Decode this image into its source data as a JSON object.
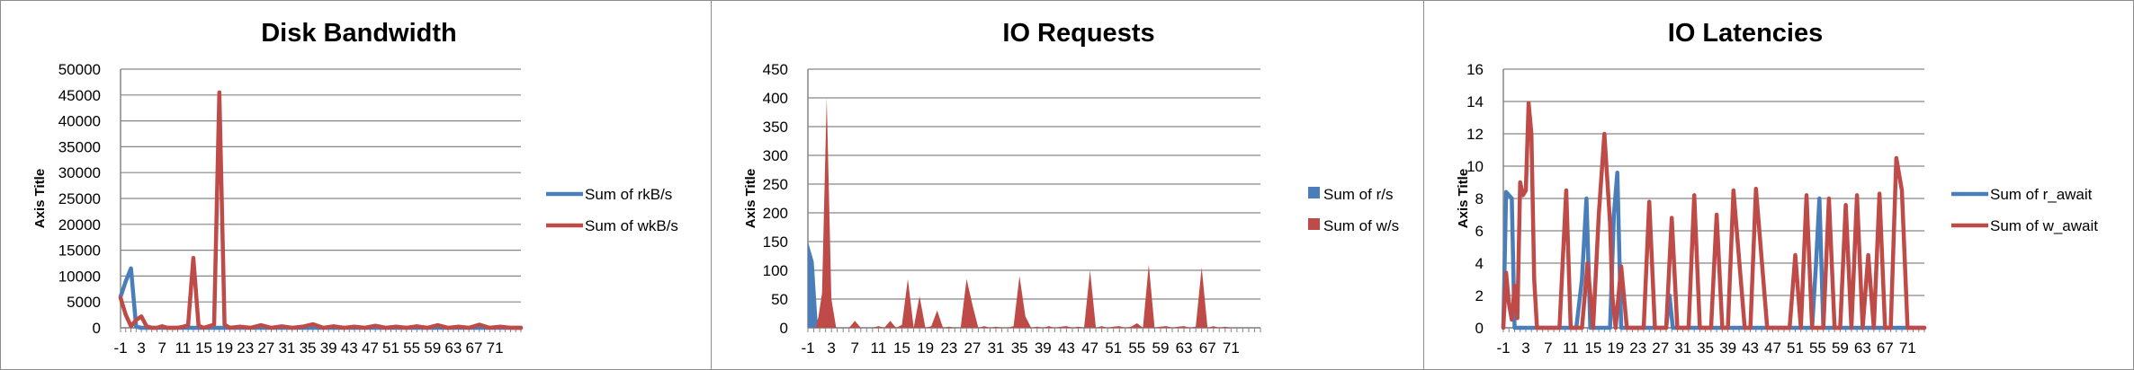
{
  "colors": {
    "blue": "#4a7ebb",
    "red": "#be4b48",
    "grid": "#868686"
  },
  "chart_data": [
    {
      "type": "line",
      "title": "Disk Bandwidth",
      "ylabel": "Axis Title",
      "ylim": [
        0,
        50000
      ],
      "yticks": [
        0,
        5000,
        10000,
        15000,
        20000,
        25000,
        30000,
        35000,
        40000,
        45000,
        50000
      ],
      "xlim": [
        -1,
        76
      ],
      "xticks": [
        -1,
        3,
        7,
        11,
        15,
        19,
        23,
        27,
        31,
        35,
        39,
        43,
        47,
        51,
        55,
        59,
        63,
        67,
        71
      ],
      "legend_position": "right",
      "series": [
        {
          "name": "Sum of rkB/s",
          "color": "#4a7ebb",
          "style": "line",
          "x": [
            -1,
            0,
            1,
            2,
            3,
            76
          ],
          "y": [
            6000,
            9000,
            11500,
            200,
            0,
            0
          ]
        },
        {
          "name": "Sum of wkB/s",
          "color": "#be4b48",
          "style": "line",
          "x": [
            -1,
            0,
            1,
            2,
            3,
            4,
            5,
            6,
            7,
            8,
            9,
            10,
            11,
            12,
            13,
            14,
            15,
            16,
            17,
            18,
            19,
            20,
            22,
            24,
            26,
            28,
            30,
            32,
            34,
            36,
            38,
            40,
            42,
            44,
            46,
            48,
            50,
            52,
            54,
            56,
            58,
            60,
            62,
            64,
            66,
            68,
            70,
            72,
            74,
            76
          ],
          "y": [
            5800,
            2500,
            300,
            1500,
            2200,
            300,
            0,
            0,
            300,
            0,
            0,
            0,
            200,
            500,
            13500,
            400,
            0,
            300,
            600,
            45500,
            600,
            0,
            200,
            0,
            500,
            0,
            300,
            0,
            200,
            700,
            0,
            300,
            0,
            200,
            0,
            400,
            0,
            200,
            0,
            300,
            0,
            500,
            0,
            200,
            0,
            600,
            0,
            200,
            0,
            0
          ]
        }
      ]
    },
    {
      "type": "area",
      "title": "IO Requests",
      "ylabel": "Axis Title",
      "ylim": [
        0,
        450
      ],
      "yticks": [
        0,
        50,
        100,
        150,
        200,
        250,
        300,
        350,
        400,
        450
      ],
      "xlim": [
        -1,
        76
      ],
      "xticks": [
        -1,
        3,
        7,
        11,
        15,
        19,
        23,
        27,
        31,
        35,
        39,
        43,
        47,
        51,
        55,
        59,
        63,
        67,
        71
      ],
      "legend_position": "right",
      "series": [
        {
          "name": "Sum of r/s",
          "color": "#4a7ebb",
          "style": "area",
          "x": [
            -1,
            0,
            0.6,
            1.2,
            76
          ],
          "y": [
            150,
            115,
            15,
            0,
            0
          ]
        },
        {
          "name": "Sum of w/s",
          "color": "#be4b48",
          "style": "area",
          "x": [
            -1,
            0.3,
            0.8,
            1.4,
            2.2,
            3,
            3.8,
            5,
            6,
            7,
            8,
            9,
            10,
            11,
            12,
            13,
            14,
            15,
            16,
            17,
            18,
            19,
            20,
            21,
            22,
            23,
            24,
            25,
            26,
            27,
            28,
            29,
            30,
            31,
            32,
            33,
            34,
            35,
            36,
            37,
            38,
            39,
            40,
            41,
            42,
            43,
            44,
            45,
            46,
            47,
            48,
            49,
            50,
            51,
            52,
            53,
            54,
            55,
            56,
            57,
            58,
            59,
            60,
            61,
            62,
            63,
            64,
            65,
            66,
            67,
            68,
            69,
            70,
            71,
            76
          ],
          "y": [
            0,
            0,
            20,
            60,
            400,
            50,
            0,
            0,
            0,
            12,
            0,
            0,
            0,
            3,
            0,
            12,
            0,
            5,
            85,
            0,
            55,
            0,
            3,
            30,
            0,
            2,
            0,
            0,
            85,
            40,
            0,
            3,
            0,
            2,
            0,
            0,
            3,
            90,
            20,
            0,
            2,
            0,
            3,
            0,
            2,
            3,
            0,
            2,
            0,
            100,
            0,
            3,
            0,
            2,
            3,
            0,
            2,
            8,
            0,
            110,
            0,
            2,
            3,
            0,
            2,
            3,
            0,
            2,
            105,
            0,
            3,
            0,
            2,
            0,
            0
          ]
        }
      ]
    },
    {
      "type": "line",
      "title": "IO Latencies",
      "ylabel": "Axis Title",
      "ylim": [
        0,
        16
      ],
      "yticks": [
        0,
        2,
        4,
        6,
        8,
        10,
        12,
        14,
        16
      ],
      "xlim": [
        -1,
        74
      ],
      "xticks": [
        -1,
        3,
        7,
        11,
        15,
        19,
        23,
        27,
        31,
        35,
        39,
        43,
        47,
        51,
        55,
        59,
        63,
        67,
        71
      ],
      "legend_position": "right",
      "series": [
        {
          "name": "Sum of r_await",
          "color": "#4a7ebb",
          "style": "line",
          "x": [
            -1,
            -0.5,
            0.5,
            1,
            12,
            13,
            13.8,
            14.5,
            18,
            18.7,
            19.3,
            20,
            28,
            28.6,
            29.2,
            54,
            54.7,
            55.3,
            56,
            74
          ],
          "y": [
            0,
            8.4,
            8,
            0,
            0,
            3,
            8,
            0,
            0,
            7,
            9.6,
            0,
            0,
            2,
            0,
            0,
            4,
            8,
            0,
            0
          ]
        },
        {
          "name": "Sum of w_await",
          "color": "#be4b48",
          "style": "line",
          "x": [
            -1,
            -0.5,
            0,
            0.5,
            1,
            1.5,
            2,
            2.5,
            3,
            3.5,
            4,
            4.5,
            5,
            5.5,
            6,
            7,
            9,
            10.2,
            11,
            12,
            13,
            14,
            15,
            16,
            17,
            18,
            18.4,
            19,
            20,
            21,
            22,
            24,
            25,
            26,
            28,
            29,
            30,
            32,
            33,
            34,
            36,
            37,
            38,
            39,
            40,
            42,
            43,
            44,
            46,
            47,
            48,
            50,
            51,
            52,
            53,
            54,
            55,
            56,
            57,
            58,
            59,
            60,
            61,
            62,
            63,
            64,
            65,
            66,
            67,
            68,
            69,
            70,
            71,
            72,
            73,
            74
          ],
          "y": [
            0,
            3.4,
            1.5,
            0.5,
            2.6,
            0.6,
            9,
            8.2,
            8.5,
            13.9,
            12,
            3,
            0,
            0,
            0,
            0,
            0,
            8.5,
            0,
            0,
            0,
            4,
            0,
            7,
            12,
            6.5,
            2,
            0,
            3.8,
            0,
            0,
            0,
            7.8,
            0,
            0,
            6.8,
            0,
            0,
            8.2,
            0,
            0,
            7,
            0,
            0,
            8.5,
            0,
            0,
            8.6,
            0,
            0,
            0,
            0,
            4.5,
            0,
            8.2,
            0,
            0,
            0,
            8,
            0,
            0,
            7.6,
            0,
            8.2,
            0,
            4.5,
            0,
            8.3,
            0,
            0,
            10.5,
            8.5,
            0,
            0,
            0,
            0
          ]
        }
      ]
    }
  ]
}
